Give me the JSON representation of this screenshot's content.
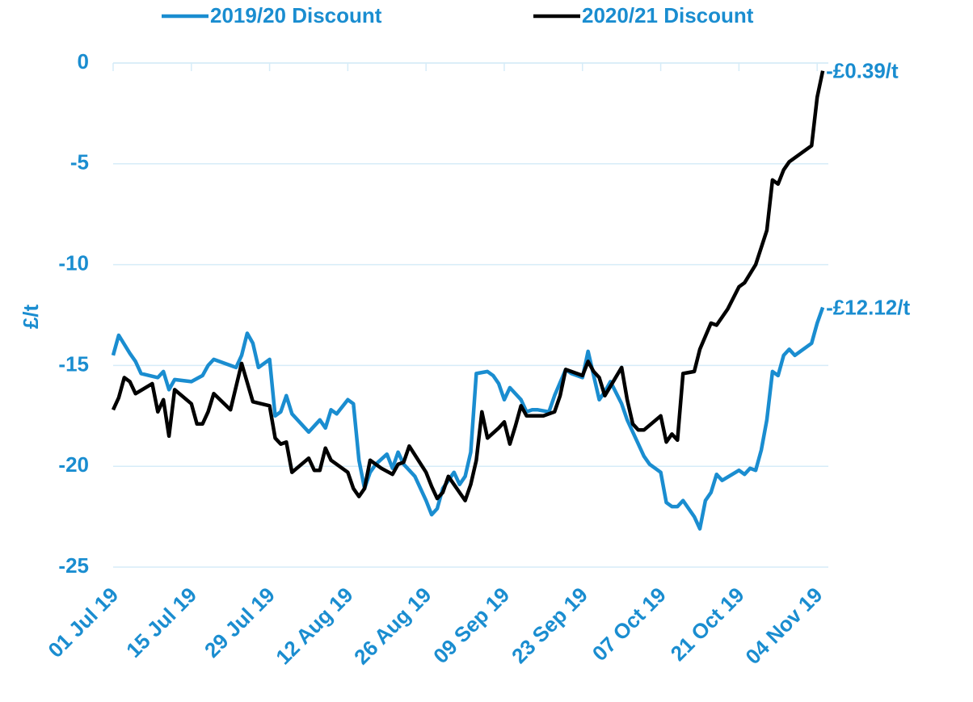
{
  "chart_data": {
    "type": "line",
    "y_label": "£/t",
    "legend": "top",
    "grid": true,
    "xlim": [
      "2019-07-01",
      "2019-11-06"
    ],
    "xticks": [
      {
        "value": "2019-07-01",
        "label": "01 Jul 19"
      },
      {
        "value": "2019-07-15",
        "label": "15 Jul 19"
      },
      {
        "value": "2019-07-29",
        "label": "29 Jul 19"
      },
      {
        "value": "2019-08-12",
        "label": "12 Aug 19"
      },
      {
        "value": "2019-08-26",
        "label": "26 Aug 19"
      },
      {
        "value": "2019-09-09",
        "label": "09 Sep 19"
      },
      {
        "value": "2019-09-23",
        "label": "23 Sep 19"
      },
      {
        "value": "2019-10-07",
        "label": "07 Oct 19"
      },
      {
        "value": "2019-10-21",
        "label": "21 Oct 19"
      },
      {
        "value": "2019-11-04",
        "label": "04 Nov 19"
      }
    ],
    "ylim": [
      -25,
      0
    ],
    "yticks": [
      0,
      -5,
      -10,
      -15,
      -20,
      -25
    ],
    "series": [
      {
        "name": "2019/20 Discount",
        "color": "#1a8dd0",
        "end_label": "-£12.12/t",
        "x": [
          "2019-07-01",
          "2019-07-02",
          "2019-07-04",
          "2019-07-05",
          "2019-07-06",
          "2019-07-09",
          "2019-07-10",
          "2019-07-11",
          "2019-07-12",
          "2019-07-15",
          "2019-07-17",
          "2019-07-18",
          "2019-07-19",
          "2019-07-23",
          "2019-07-24",
          "2019-07-25",
          "2019-07-26",
          "2019-07-27",
          "2019-07-29",
          "2019-07-30",
          "2019-07-31",
          "2019-08-01",
          "2019-08-02",
          "2019-08-05",
          "2019-08-06",
          "2019-08-07",
          "2019-08-08",
          "2019-08-09",
          "2019-08-10",
          "2019-08-12",
          "2019-08-13",
          "2019-08-14",
          "2019-08-15",
          "2019-08-16",
          "2019-08-17",
          "2019-08-19",
          "2019-08-20",
          "2019-08-21",
          "2019-08-22",
          "2019-08-24",
          "2019-08-26",
          "2019-08-27",
          "2019-08-28",
          "2019-08-29",
          "2019-08-31",
          "2019-09-01",
          "2019-09-02",
          "2019-09-03",
          "2019-09-04",
          "2019-09-06",
          "2019-09-07",
          "2019-09-08",
          "2019-09-09",
          "2019-09-10",
          "2019-09-12",
          "2019-09-13",
          "2019-09-14",
          "2019-09-15",
          "2019-09-17",
          "2019-09-18",
          "2019-09-20",
          "2019-09-21",
          "2019-09-23",
          "2019-09-24",
          "2019-09-25",
          "2019-09-26",
          "2019-09-27",
          "2019-09-28",
          "2019-09-30",
          "2019-10-01",
          "2019-10-03",
          "2019-10-04",
          "2019-10-05",
          "2019-10-07",
          "2019-10-08",
          "2019-10-09",
          "2019-10-10",
          "2019-10-11",
          "2019-10-13",
          "2019-10-14",
          "2019-10-15",
          "2019-10-16",
          "2019-10-17",
          "2019-10-18",
          "2019-10-21",
          "2019-10-22",
          "2019-10-23",
          "2019-10-24",
          "2019-10-25",
          "2019-10-26",
          "2019-10-27",
          "2019-10-28",
          "2019-10-29",
          "2019-10-30",
          "2019-10-31",
          "2019-11-03",
          "2019-11-04",
          "2019-11-05"
        ],
        "values": [
          -14.5,
          -13.5,
          -14.4,
          -14.8,
          -15.4,
          -15.6,
          -15.3,
          -16.2,
          -15.7,
          -15.8,
          -15.5,
          -15.0,
          -14.7,
          -15.1,
          -14.5,
          -13.4,
          -13.9,
          -15.1,
          -14.7,
          -17.5,
          -17.3,
          -16.5,
          -17.4,
          -18.3,
          -18.0,
          -17.7,
          -18.1,
          -17.2,
          -17.4,
          -16.7,
          -16.9,
          -19.7,
          -21.1,
          -20.3,
          -19.9,
          -19.4,
          -20.1,
          -19.3,
          -19.9,
          -20.5,
          -21.7,
          -22.4,
          -22.1,
          -21.1,
          -20.3,
          -20.9,
          -20.5,
          -19.3,
          -15.4,
          -15.3,
          -15.5,
          -15.9,
          -16.7,
          -16.1,
          -16.7,
          -17.3,
          -17.2,
          -17.2,
          -17.3,
          -16.5,
          -15.2,
          -15.4,
          -15.6,
          -14.3,
          -15.5,
          -16.7,
          -16.3,
          -15.8,
          -16.9,
          -17.7,
          -18.9,
          -19.5,
          -19.9,
          -20.3,
          -21.8,
          -22.0,
          -22.0,
          -21.7,
          -22.5,
          -23.1,
          -21.7,
          -21.3,
          -20.4,
          -20.7,
          -20.2,
          -20.4,
          -20.1,
          -20.2,
          -19.2,
          -17.7,
          -15.3,
          -15.5,
          -14.5,
          -14.2,
          -14.5,
          -13.9,
          -12.9,
          -12.12
        ]
      },
      {
        "name": "2020/21 Discount",
        "color": "#000000",
        "end_label": "-£0.39/t",
        "x": [
          "2019-07-01",
          "2019-07-02",
          "2019-07-03",
          "2019-07-04",
          "2019-07-05",
          "2019-07-08",
          "2019-07-09",
          "2019-07-10",
          "2019-07-11",
          "2019-07-12",
          "2019-07-15",
          "2019-07-16",
          "2019-07-17",
          "2019-07-18",
          "2019-07-19",
          "2019-07-22",
          "2019-07-24",
          "2019-07-26",
          "2019-07-29",
          "2019-07-30",
          "2019-07-31",
          "2019-08-01",
          "2019-08-02",
          "2019-08-05",
          "2019-08-06",
          "2019-08-07",
          "2019-08-08",
          "2019-08-09",
          "2019-08-12",
          "2019-08-13",
          "2019-08-14",
          "2019-08-15",
          "2019-08-16",
          "2019-08-18",
          "2019-08-20",
          "2019-08-21",
          "2019-08-22",
          "2019-08-23",
          "2019-08-26",
          "2019-08-27",
          "2019-08-28",
          "2019-08-29",
          "2019-08-30",
          "2019-09-02",
          "2019-09-03",
          "2019-09-04",
          "2019-09-05",
          "2019-09-06",
          "2019-09-08",
          "2019-09-09",
          "2019-09-10",
          "2019-09-11",
          "2019-09-12",
          "2019-09-13",
          "2019-09-16",
          "2019-09-18",
          "2019-09-19",
          "2019-09-20",
          "2019-09-23",
          "2019-09-24",
          "2019-09-25",
          "2019-09-26",
          "2019-09-27",
          "2019-09-30",
          "2019-10-01",
          "2019-10-02",
          "2019-10-03",
          "2019-10-04",
          "2019-10-07",
          "2019-10-08",
          "2019-10-09",
          "2019-10-10",
          "2019-10-11",
          "2019-10-13",
          "2019-10-14",
          "2019-10-16",
          "2019-10-17",
          "2019-10-19",
          "2019-10-21",
          "2019-10-22",
          "2019-10-24",
          "2019-10-26",
          "2019-10-27",
          "2019-10-28",
          "2019-10-29",
          "2019-10-30",
          "2019-11-03",
          "2019-11-04",
          "2019-11-05"
        ],
        "values": [
          -17.2,
          -16.6,
          -15.6,
          -15.8,
          -16.4,
          -15.9,
          -17.3,
          -16.7,
          -18.5,
          -16.2,
          -16.9,
          -17.9,
          -17.9,
          -17.3,
          -16.4,
          -17.2,
          -14.9,
          -16.8,
          -17.0,
          -18.6,
          -18.9,
          -18.8,
          -20.3,
          -19.6,
          -20.2,
          -20.2,
          -19.1,
          -19.7,
          -20.3,
          -21.1,
          -21.5,
          -21.1,
          -19.7,
          -20.1,
          -20.4,
          -19.9,
          -19.8,
          -19.0,
          -20.3,
          -21.0,
          -21.6,
          -21.3,
          -20.5,
          -21.7,
          -20.9,
          -19.7,
          -17.3,
          -18.6,
          -18.1,
          -17.8,
          -18.9,
          -18.0,
          -17.0,
          -17.5,
          -17.5,
          -17.3,
          -16.5,
          -15.2,
          -15.5,
          -14.8,
          -15.3,
          -15.6,
          -16.5,
          -15.1,
          -16.7,
          -17.9,
          -18.2,
          -18.2,
          -17.5,
          -18.8,
          -18.4,
          -18.7,
          -15.4,
          -15.3,
          -14.2,
          -12.9,
          -13.0,
          -12.2,
          -11.1,
          -10.9,
          -10.0,
          -8.3,
          -5.8,
          -6.0,
          -5.3,
          -4.9,
          -4.1,
          -1.7,
          -0.39
        ]
      }
    ]
  }
}
